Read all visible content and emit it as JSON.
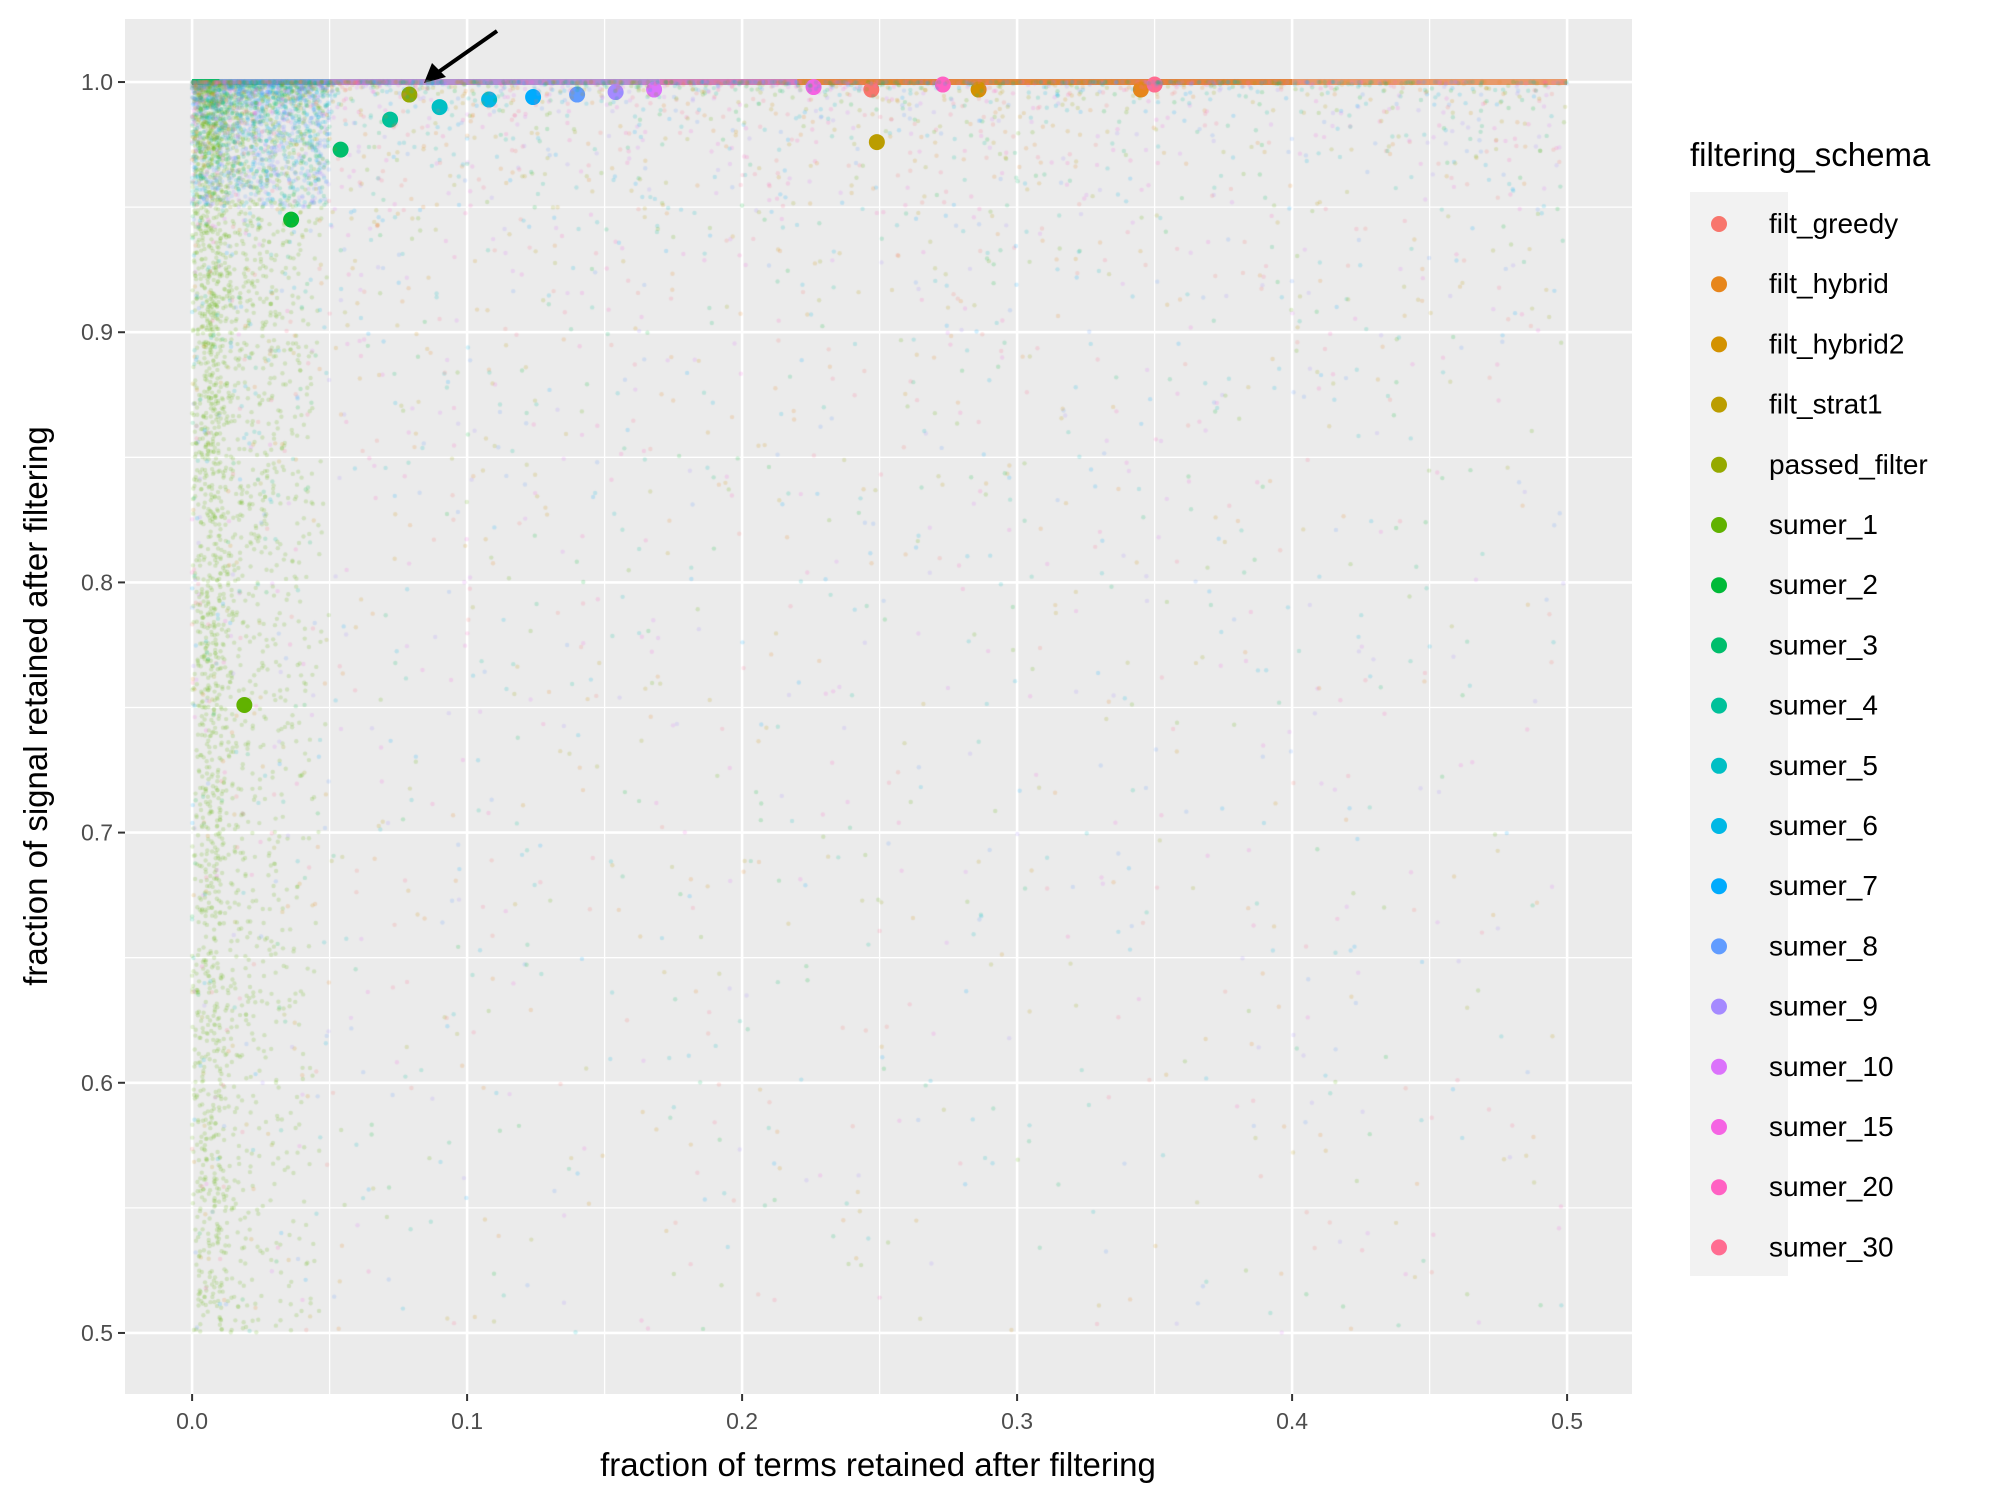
{
  "chart_data": {
    "type": "scatter",
    "title": "",
    "xlabel": "fraction of terms retained after filtering",
    "ylabel": "fraction of signal retained after filtering",
    "xlim": [
      -0.0244,
      0.5236
    ],
    "ylim": [
      0.4756,
      1.0252
    ],
    "x_ticks": [
      "0.0",
      "0.1",
      "0.2",
      "0.3",
      "0.4",
      "0.5"
    ],
    "y_ticks": [
      "0.5",
      "0.6",
      "0.7",
      "0.8",
      "0.9",
      "1.0"
    ],
    "grid": true,
    "legend": {
      "title": "filtering_schema",
      "position": "right"
    },
    "series": [
      {
        "name": "filt_greedy",
        "color": "#F8766D",
        "x": 0.247,
        "y": 0.997
      },
      {
        "name": "filt_hybrid",
        "color": "#E7861B",
        "x": 0.345,
        "y": 0.997
      },
      {
        "name": "filt_hybrid2",
        "color": "#D39200",
        "x": 0.286,
        "y": 0.997
      },
      {
        "name": "filt_strat1",
        "color": "#BB9D00",
        "x": 0.249,
        "y": 0.976
      },
      {
        "name": "passed_filter",
        "color": "#95A900",
        "x": 0.079,
        "y": 0.995
      },
      {
        "name": "sumer_1",
        "color": "#61B200",
        "x": 0.019,
        "y": 0.751
      },
      {
        "name": "sumer_2",
        "color": "#00BA38",
        "x": 0.036,
        "y": 0.945
      },
      {
        "name": "sumer_3",
        "color": "#00BE6C",
        "x": 0.054,
        "y": 0.973
      },
      {
        "name": "sumer_4",
        "color": "#00C19A",
        "x": 0.072,
        "y": 0.985
      },
      {
        "name": "sumer_5",
        "color": "#00BFC4",
        "x": 0.09,
        "y": 0.99
      },
      {
        "name": "sumer_6",
        "color": "#00B8E5",
        "x": 0.108,
        "y": 0.993
      },
      {
        "name": "sumer_7",
        "color": "#00ABFD",
        "x": 0.124,
        "y": 0.994
      },
      {
        "name": "sumer_8",
        "color": "#619CFF",
        "x": 0.14,
        "y": 0.995
      },
      {
        "name": "sumer_9",
        "color": "#A58AFF",
        "x": 0.154,
        "y": 0.996
      },
      {
        "name": "sumer_10",
        "color": "#DB72FB",
        "x": 0.168,
        "y": 0.997
      },
      {
        "name": "sumer_15",
        "color": "#F564E3",
        "x": 0.226,
        "y": 0.998
      },
      {
        "name": "sumer_20",
        "color": "#FF61C3",
        "x": 0.273,
        "y": 0.999
      },
      {
        "name": "sumer_30",
        "color": "#FF6C91",
        "x": 0.35,
        "y": 0.999
      }
    ],
    "annotation": {
      "type": "arrow",
      "points_to": "passed_filter"
    }
  }
}
